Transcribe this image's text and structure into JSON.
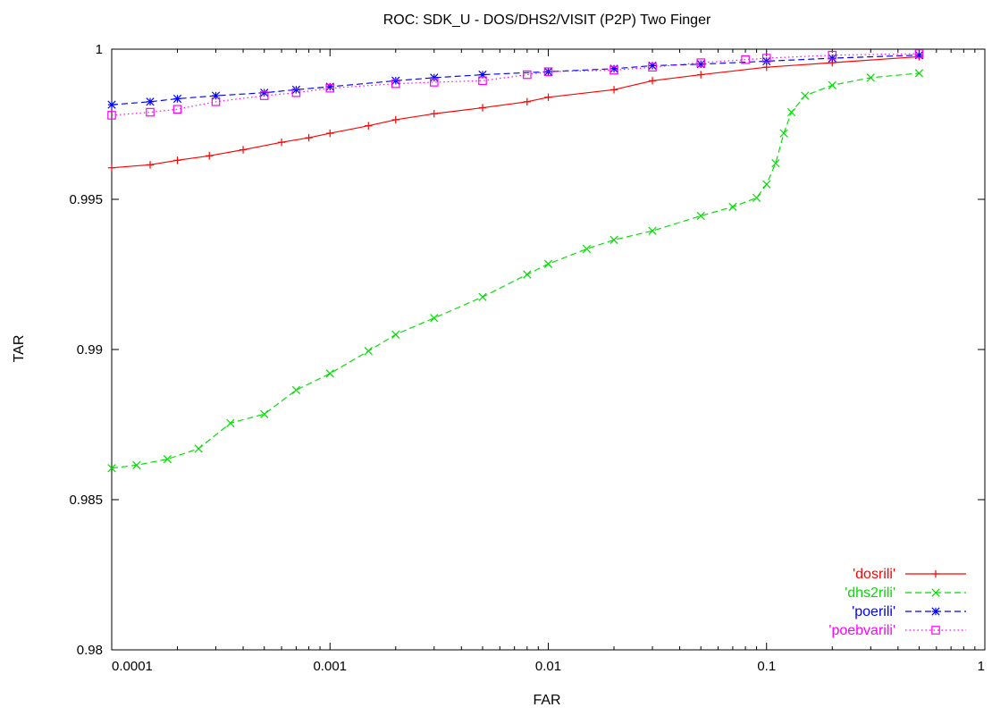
{
  "chart_data": {
    "type": "line",
    "title": "ROC: SDK_U - DOS/DHS2/VISIT (P2P) Two Finger",
    "xlabel": "FAR",
    "ylabel": "TAR",
    "xscale": "log",
    "xlim": [
      0.0001,
      1
    ],
    "ylim": [
      0.98,
      1
    ],
    "xticks": [
      0.0001,
      0.001,
      0.01,
      0.1,
      1
    ],
    "xtick_labels": [
      "0.0001",
      "0.001",
      "0.01",
      "0.1",
      "1"
    ],
    "yticks": [
      0.98,
      0.985,
      0.99,
      0.995,
      1
    ],
    "ytick_labels": [
      "0.98",
      "0.985",
      "0.99",
      "0.995",
      "1"
    ],
    "grid": false,
    "legend_position": "bottom-right",
    "series": [
      {
        "name": "'dosrili'",
        "color": "#ff0000",
        "marker": "plus",
        "line_style": "solid",
        "points": [
          [
            0.0001,
            0.99605
          ],
          [
            0.00015,
            0.99615
          ],
          [
            0.0002,
            0.9963
          ],
          [
            0.00028,
            0.99645
          ],
          [
            0.0004,
            0.99665
          ],
          [
            0.0006,
            0.9969
          ],
          [
            0.0008,
            0.99705
          ],
          [
            0.001,
            0.9972
          ],
          [
            0.0015,
            0.99745
          ],
          [
            0.002,
            0.99765
          ],
          [
            0.003,
            0.99785
          ],
          [
            0.005,
            0.99805
          ],
          [
            0.008,
            0.99825
          ],
          [
            0.01,
            0.9984
          ],
          [
            0.02,
            0.99865
          ],
          [
            0.03,
            0.99895
          ],
          [
            0.05,
            0.99915
          ],
          [
            0.1,
            0.9994
          ],
          [
            0.2,
            0.99955
          ],
          [
            0.5,
            0.99975
          ]
        ]
      },
      {
        "name": "'dhs2rili'",
        "color": "#00dd00",
        "marker": "cross",
        "line_style": "dashed",
        "points": [
          [
            0.0001,
            0.98605
          ],
          [
            0.00013,
            0.98615
          ],
          [
            0.00018,
            0.98635
          ],
          [
            0.00025,
            0.9867
          ],
          [
            0.00035,
            0.98755
          ],
          [
            0.0005,
            0.98785
          ],
          [
            0.0007,
            0.98865
          ],
          [
            0.001,
            0.9892
          ],
          [
            0.0015,
            0.98995
          ],
          [
            0.002,
            0.9905
          ],
          [
            0.003,
            0.99105
          ],
          [
            0.005,
            0.99175
          ],
          [
            0.008,
            0.9925
          ],
          [
            0.01,
            0.99285
          ],
          [
            0.015,
            0.99335
          ],
          [
            0.02,
            0.99365
          ],
          [
            0.03,
            0.99395
          ],
          [
            0.05,
            0.99445
          ],
          [
            0.07,
            0.99475
          ],
          [
            0.09,
            0.99505
          ],
          [
            0.1,
            0.9955
          ],
          [
            0.11,
            0.9962
          ],
          [
            0.12,
            0.9972
          ],
          [
            0.13,
            0.9979
          ],
          [
            0.15,
            0.99845
          ],
          [
            0.2,
            0.9988
          ],
          [
            0.3,
            0.99905
          ],
          [
            0.5,
            0.9992
          ]
        ]
      },
      {
        "name": "'poerili'",
        "color": "#0000ff",
        "marker": "star",
        "line_style": "dashed",
        "points": [
          [
            0.0001,
            0.99815
          ],
          [
            0.00015,
            0.99825
          ],
          [
            0.0002,
            0.99835
          ],
          [
            0.0003,
            0.99845
          ],
          [
            0.0005,
            0.99855
          ],
          [
            0.0007,
            0.99865
          ],
          [
            0.001,
            0.99875
          ],
          [
            0.002,
            0.99895
          ],
          [
            0.003,
            0.99905
          ],
          [
            0.005,
            0.99915
          ],
          [
            0.01,
            0.99925
          ],
          [
            0.02,
            0.99935
          ],
          [
            0.03,
            0.99945
          ],
          [
            0.05,
            0.9995
          ],
          [
            0.1,
            0.9996
          ],
          [
            0.2,
            0.9997
          ],
          [
            0.5,
            0.9998
          ]
        ]
      },
      {
        "name": "'poebvarili'",
        "color": "#ff00ff",
        "marker": "square",
        "line_style": "dotted",
        "points": [
          [
            0.0001,
            0.9978
          ],
          [
            0.00015,
            0.9979
          ],
          [
            0.0002,
            0.998
          ],
          [
            0.0003,
            0.99825
          ],
          [
            0.0005,
            0.99845
          ],
          [
            0.0007,
            0.99855
          ],
          [
            0.001,
            0.9987
          ],
          [
            0.002,
            0.99885
          ],
          [
            0.003,
            0.9989
          ],
          [
            0.005,
            0.99895
          ],
          [
            0.008,
            0.99915
          ],
          [
            0.01,
            0.99925
          ],
          [
            0.02,
            0.9993
          ],
          [
            0.03,
            0.9994
          ],
          [
            0.05,
            0.99955
          ],
          [
            0.08,
            0.99965
          ],
          [
            0.1,
            0.9997
          ],
          [
            0.2,
            0.9998
          ],
          [
            0.5,
            0.99985
          ]
        ]
      }
    ]
  }
}
